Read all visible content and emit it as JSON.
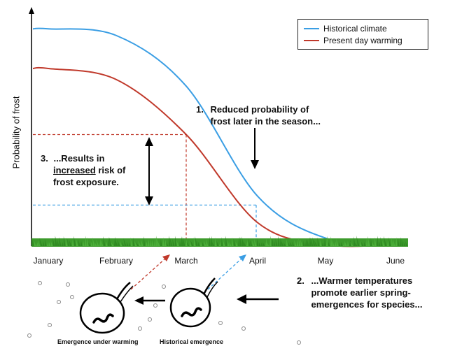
{
  "chart_data": {
    "type": "line",
    "ylabel": "Probability of frost",
    "xlabel": "",
    "categories": [
      "January",
      "February",
      "March",
      "April",
      "May",
      "June"
    ],
    "series": [
      {
        "name": "Historical climate",
        "color": "#3a9ee4",
        "values": [
          0.98,
          0.95,
          0.72,
          0.22,
          0.03,
          0.0
        ]
      },
      {
        "name": "Present day warming",
        "color": "#c0392b",
        "values": [
          0.8,
          0.75,
          0.5,
          0.1,
          0.0,
          0.0
        ]
      }
    ],
    "reference_lines": {
      "historical_april_level": 0.18,
      "warming_march_level": 0.5
    },
    "annotations": {
      "a1_num": "1.",
      "a1_text": "Reduced probability of frost later in the season...",
      "a2_num": "2.",
      "a2_text": "...Warmer temperatures promote earlier spring-emergences for species...",
      "a3_num": "3.",
      "a3_line1": "...Results in",
      "a3_under": "increased",
      "a3_rest": "risk of",
      "a3_line3": "frost exposure."
    },
    "captions": {
      "warming": "Emergence under warming",
      "historical": "Historical emergence"
    },
    "legend_position": "top-right"
  }
}
